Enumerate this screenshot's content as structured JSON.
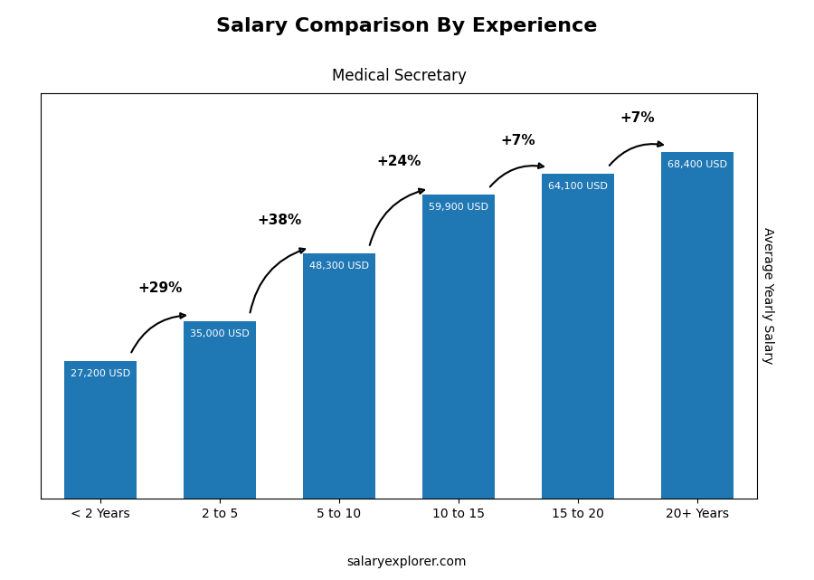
{
  "chart_data": {
    "type": "bar",
    "title": "Salary Comparison By Experience",
    "subtitle": "Medical Secretary",
    "y_label": "Average Yearly Salary",
    "categories": [
      "< 2 Years",
      "2 to 5",
      "5 to 10",
      "10 to 15",
      "15 to 20",
      "20+ Years"
    ],
    "values": [
      27200,
      35000,
      48300,
      59900,
      64100,
      68400
    ],
    "value_labels": [
      "27,200 USD",
      "35,000 USD",
      "48,300 USD",
      "59,900 USD",
      "64,100 USD",
      "68,400 USD"
    ],
    "data_labels": true,
    "annotations": [
      "+29%",
      "+38%",
      "+24%",
      "+7%",
      "+7%"
    ],
    "footer": "salaryexplorer.com",
    "ylim": [
      0,
      80000
    ],
    "tick_labels": "x",
    "grid": false
  }
}
